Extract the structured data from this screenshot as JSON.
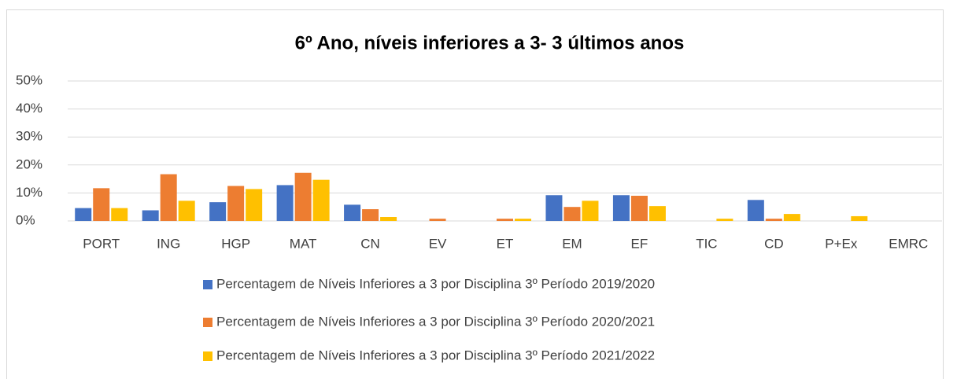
{
  "chart_data": {
    "type": "bar",
    "title": "6º Ano, níveis inferiores a 3-  3 últimos anos",
    "categories": [
      "PORT",
      "ING",
      "HGP",
      "MAT",
      "CN",
      "EV",
      "ET",
      "EM",
      "EF",
      "TIC",
      "CD",
      "P+Ex",
      "EMRC"
    ],
    "series": [
      {
        "name": "Percentagem de Níveis Inferiores a 3 por Disciplina 3º Período 2019/2020",
        "color": "#4472c4",
        "values": [
          4.6,
          3.8,
          6.7,
          12.8,
          5.8,
          0,
          0,
          9.2,
          9.2,
          0,
          7.5,
          0,
          0
        ]
      },
      {
        "name": "Percentagem de Níveis Inferiores a 3 por Disciplina 3º Período 2020/2021",
        "color": "#ed7d31",
        "values": [
          11.7,
          16.7,
          12.5,
          17.2,
          4.2,
          0.8,
          0.8,
          5.0,
          9.0,
          0,
          0.8,
          0,
          0
        ]
      },
      {
        "name": "Percentagem de Níveis Inferiores a 3 por Disciplina 3º Período 2021/2022",
        "color": "#ffc000",
        "values": [
          4.6,
          7.2,
          11.4,
          14.7,
          1.4,
          0,
          0.8,
          7.2,
          5.3,
          0.8,
          2.5,
          1.7,
          0
        ]
      }
    ],
    "ylim": [
      0,
      50
    ],
    "yticks": [
      {
        "value": 0,
        "label": "0%"
      },
      {
        "value": 10,
        "label": "10%"
      },
      {
        "value": 20,
        "label": "20%"
      },
      {
        "value": 30,
        "label": "30%"
      },
      {
        "value": 40,
        "label": "40%"
      },
      {
        "value": 50,
        "label": "50%"
      }
    ],
    "grid": true,
    "legend": "bottom"
  }
}
